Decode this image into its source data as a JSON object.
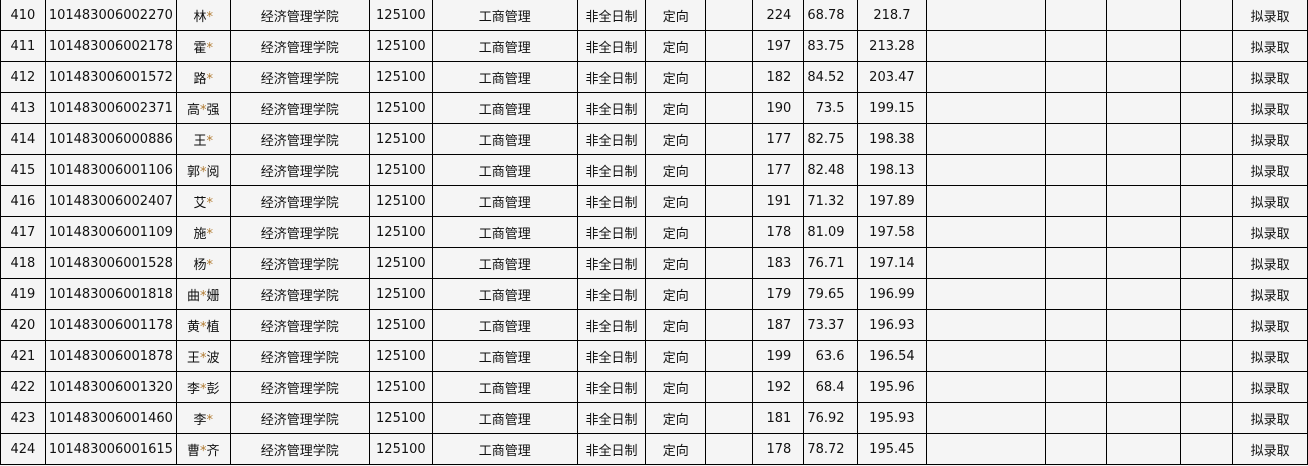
{
  "accent": {
    "star_color": "#b07a30"
  },
  "rows": [
    {
      "no": "410",
      "id": "101483006002270",
      "name_a": "林",
      "name_b": "",
      "college": "经济管理学院",
      "code": "125100",
      "major": "工商管理",
      "mode": "非全日制",
      "type": "定向",
      "s1": "224",
      "s2": "68.78",
      "total": "218.7",
      "status": "拟录取"
    },
    {
      "no": "411",
      "id": "101483006002178",
      "name_a": "霍",
      "name_b": "",
      "college": "经济管理学院",
      "code": "125100",
      "major": "工商管理",
      "mode": "非全日制",
      "type": "定向",
      "s1": "197",
      "s2": "83.75",
      "total": "213.28",
      "status": "拟录取"
    },
    {
      "no": "412",
      "id": "101483006001572",
      "name_a": "路",
      "name_b": "",
      "college": "经济管理学院",
      "code": "125100",
      "major": "工商管理",
      "mode": "非全日制",
      "type": "定向",
      "s1": "182",
      "s2": "84.52",
      "total": "203.47",
      "status": "拟录取"
    },
    {
      "no": "413",
      "id": "101483006002371",
      "name_a": "高",
      "name_b": "强",
      "college": "经济管理学院",
      "code": "125100",
      "major": "工商管理",
      "mode": "非全日制",
      "type": "定向",
      "s1": "190",
      "s2": "73.5",
      "total": "199.15",
      "status": "拟录取"
    },
    {
      "no": "414",
      "id": "101483006000886",
      "name_a": "王",
      "name_b": "",
      "college": "经济管理学院",
      "code": "125100",
      "major": "工商管理",
      "mode": "非全日制",
      "type": "定向",
      "s1": "177",
      "s2": "82.75",
      "total": "198.38",
      "status": "拟录取"
    },
    {
      "no": "415",
      "id": "101483006001106",
      "name_a": "郭",
      "name_b": "阅",
      "college": "经济管理学院",
      "code": "125100",
      "major": "工商管理",
      "mode": "非全日制",
      "type": "定向",
      "s1": "177",
      "s2": "82.48",
      "total": "198.13",
      "status": "拟录取"
    },
    {
      "no": "416",
      "id": "101483006002407",
      "name_a": "艾",
      "name_b": "",
      "college": "经济管理学院",
      "code": "125100",
      "major": "工商管理",
      "mode": "非全日制",
      "type": "定向",
      "s1": "191",
      "s2": "71.32",
      "total": "197.89",
      "status": "拟录取"
    },
    {
      "no": "417",
      "id": "101483006001109",
      "name_a": "施",
      "name_b": "",
      "college": "经济管理学院",
      "code": "125100",
      "major": "工商管理",
      "mode": "非全日制",
      "type": "定向",
      "s1": "178",
      "s2": "81.09",
      "total": "197.58",
      "status": "拟录取"
    },
    {
      "no": "418",
      "id": "101483006001528",
      "name_a": "杨",
      "name_b": "",
      "college": "经济管理学院",
      "code": "125100",
      "major": "工商管理",
      "mode": "非全日制",
      "type": "定向",
      "s1": "183",
      "s2": "76.71",
      "total": "197.14",
      "status": "拟录取"
    },
    {
      "no": "419",
      "id": "101483006001818",
      "name_a": "曲",
      "name_b": "姗",
      "college": "经济管理学院",
      "code": "125100",
      "major": "工商管理",
      "mode": "非全日制",
      "type": "定向",
      "s1": "179",
      "s2": "79.65",
      "total": "196.99",
      "status": "拟录取"
    },
    {
      "no": "420",
      "id": "101483006001178",
      "name_a": "黄",
      "name_b": "植",
      "college": "经济管理学院",
      "code": "125100",
      "major": "工商管理",
      "mode": "非全日制",
      "type": "定向",
      "s1": "187",
      "s2": "73.37",
      "total": "196.93",
      "status": "拟录取"
    },
    {
      "no": "421",
      "id": "101483006001878",
      "name_a": "王",
      "name_b": "波",
      "college": "经济管理学院",
      "code": "125100",
      "major": "工商管理",
      "mode": "非全日制",
      "type": "定向",
      "s1": "199",
      "s2": "63.6",
      "total": "196.54",
      "status": "拟录取"
    },
    {
      "no": "422",
      "id": "101483006001320",
      "name_a": "李",
      "name_b": "彭",
      "college": "经济管理学院",
      "code": "125100",
      "major": "工商管理",
      "mode": "非全日制",
      "type": "定向",
      "s1": "192",
      "s2": "68.4",
      "total": "195.96",
      "status": "拟录取"
    },
    {
      "no": "423",
      "id": "101483006001460",
      "name_a": "李",
      "name_b": "",
      "college": "经济管理学院",
      "code": "125100",
      "major": "工商管理",
      "mode": "非全日制",
      "type": "定向",
      "s1": "181",
      "s2": "76.92",
      "total": "195.93",
      "status": "拟录取"
    },
    {
      "no": "424",
      "id": "101483006001615",
      "name_a": "曹",
      "name_b": "齐",
      "college": "经济管理学院",
      "code": "125100",
      "major": "工商管理",
      "mode": "非全日制",
      "type": "定向",
      "s1": "178",
      "s2": "78.72",
      "total": "195.45",
      "status": "拟录取"
    }
  ]
}
